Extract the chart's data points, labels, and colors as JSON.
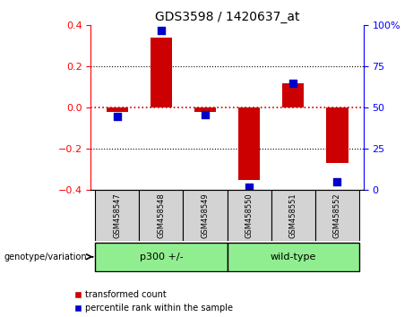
{
  "title": "GDS3598 / 1420637_at",
  "samples": [
    "GSM458547",
    "GSM458548",
    "GSM458549",
    "GSM458550",
    "GSM458551",
    "GSM458552"
  ],
  "red_values": [
    -0.02,
    0.34,
    -0.02,
    -0.35,
    0.12,
    -0.27
  ],
  "blue_values": [
    45,
    97,
    46,
    2,
    65,
    5
  ],
  "ylim_left": [
    -0.4,
    0.4
  ],
  "ylim_right": [
    0,
    100
  ],
  "yticks_left": [
    -0.4,
    -0.2,
    0.0,
    0.2,
    0.4
  ],
  "yticks_right": [
    0,
    25,
    50,
    75,
    100
  ],
  "ytick_labels_right": [
    "0",
    "25",
    "50",
    "75",
    "100%"
  ],
  "group_labels": [
    "p300 +/-",
    "wild-type"
  ],
  "group_ranges": [
    [
      0,
      3
    ],
    [
      3,
      6
    ]
  ],
  "group_color": "#90ee90",
  "bar_color": "#cc0000",
  "dot_color": "#0000cc",
  "zero_line_color": "#cc0000",
  "grid_color": "black",
  "bg_plot": "white",
  "bg_sample_band": "#d3d3d3",
  "legend_red_label": "transformed count",
  "legend_blue_label": "percentile rank within the sample",
  "genotype_label": "genotype/variation",
  "bar_width": 0.5,
  "dot_size": 35
}
